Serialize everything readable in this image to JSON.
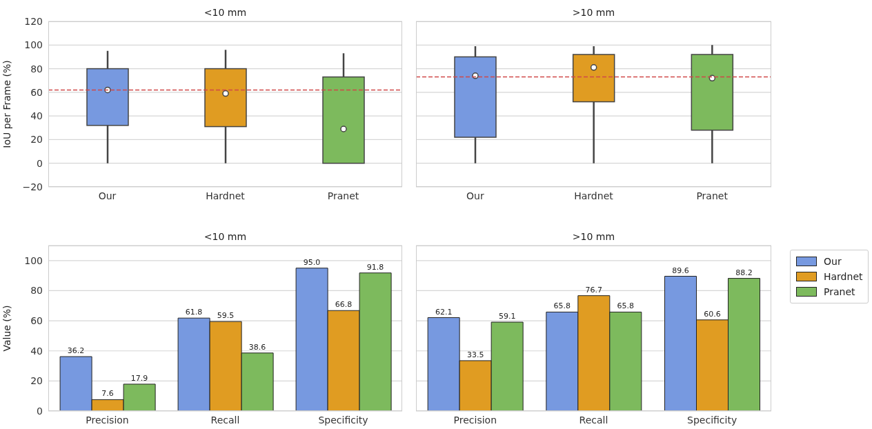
{
  "chart_data": [
    {
      "type": "box",
      "title": "<10 mm",
      "ylabel": "IoU per Frame (%)",
      "categories": [
        "Our",
        "Hardnet",
        "Pranet"
      ],
      "colors": [
        "#7799e0",
        "#e09c22",
        "#7dba5d"
      ],
      "boxes": [
        {
          "low": 0,
          "q1": 32,
          "median": 62,
          "q3": 80,
          "high": 95
        },
        {
          "low": 0,
          "q1": 31,
          "median": 59,
          "q3": 80,
          "high": 96
        },
        {
          "low": 0,
          "q1": 0,
          "median": 29,
          "q3": 73,
          "high": 93
        }
      ],
      "ylim": [
        -20,
        120
      ],
      "yticks": [
        -20,
        0,
        20,
        40,
        60,
        80,
        100,
        120
      ],
      "grid": "y",
      "ref_lines": [
        {
          "axis": "y",
          "value": 62,
          "color": "#d04848",
          "line_style": "dashed"
        }
      ]
    },
    {
      "type": "box",
      "title": ">10 mm",
      "categories": [
        "Our",
        "Hardnet",
        "Pranet"
      ],
      "colors": [
        "#7799e0",
        "#e09c22",
        "#7dba5d"
      ],
      "boxes": [
        {
          "low": 0,
          "q1": 22,
          "median": 74,
          "q3": 90,
          "high": 99
        },
        {
          "low": 0,
          "q1": 52,
          "median": 81,
          "q3": 92,
          "high": 99
        },
        {
          "low": 0,
          "q1": 28,
          "median": 72,
          "q3": 92,
          "high": 100
        }
      ],
      "ylim": [
        -20,
        120
      ],
      "yticks": [
        -20,
        0,
        20,
        40,
        60,
        80,
        100,
        120
      ],
      "grid": "y",
      "tick_labels": "x",
      "ref_lines": [
        {
          "axis": "y",
          "value": 73,
          "color": "#d04848",
          "line_style": "dashed"
        }
      ]
    },
    {
      "type": "bar",
      "title": "<10 mm",
      "ylabel": "Value (%)",
      "categories": [
        "Precision",
        "Recall",
        "Specificity"
      ],
      "series": [
        {
          "color": "#7799e0",
          "values": [
            36.2,
            61.8,
            95.0
          ],
          "value_labels": [
            "36.2",
            "61.8",
            "95.0"
          ]
        },
        {
          "color": "#e09c22",
          "values": [
            7.6,
            59.5,
            66.8
          ],
          "value_labels": [
            "7.6",
            "59.5",
            "66.8"
          ]
        },
        {
          "color": "#7dba5d",
          "values": [
            17.9,
            38.6,
            91.8
          ],
          "value_labels": [
            "17.9",
            "38.6",
            "91.8"
          ]
        }
      ],
      "ylim": [
        0,
        110
      ],
      "yticks": [
        0,
        20,
        40,
        60,
        80,
        100
      ],
      "grid": "y"
    },
    {
      "type": "bar",
      "title": ">10 mm",
      "categories": [
        "Precision",
        "Recall",
        "Specificity"
      ],
      "series": [
        {
          "name": "Our",
          "color": "#7799e0",
          "values": [
            62.1,
            65.8,
            89.6
          ],
          "value_labels": [
            "62.1",
            "65.8",
            "89.6"
          ]
        },
        {
          "name": "Hardnet",
          "color": "#e09c22",
          "values": [
            33.5,
            76.7,
            60.6
          ],
          "value_labels": [
            "33.5",
            "76.7",
            "60.6"
          ]
        },
        {
          "name": "Pranet",
          "color": "#7dba5d",
          "values": [
            59.1,
            65.8,
            88.2
          ],
          "value_labels": [
            "59.1",
            "65.8",
            "88.2"
          ]
        }
      ],
      "ylim": [
        0,
        110
      ],
      "yticks": [
        0,
        20,
        40,
        60,
        80,
        100
      ],
      "grid": "y",
      "tick_labels": "x",
      "legend": "right"
    }
  ]
}
